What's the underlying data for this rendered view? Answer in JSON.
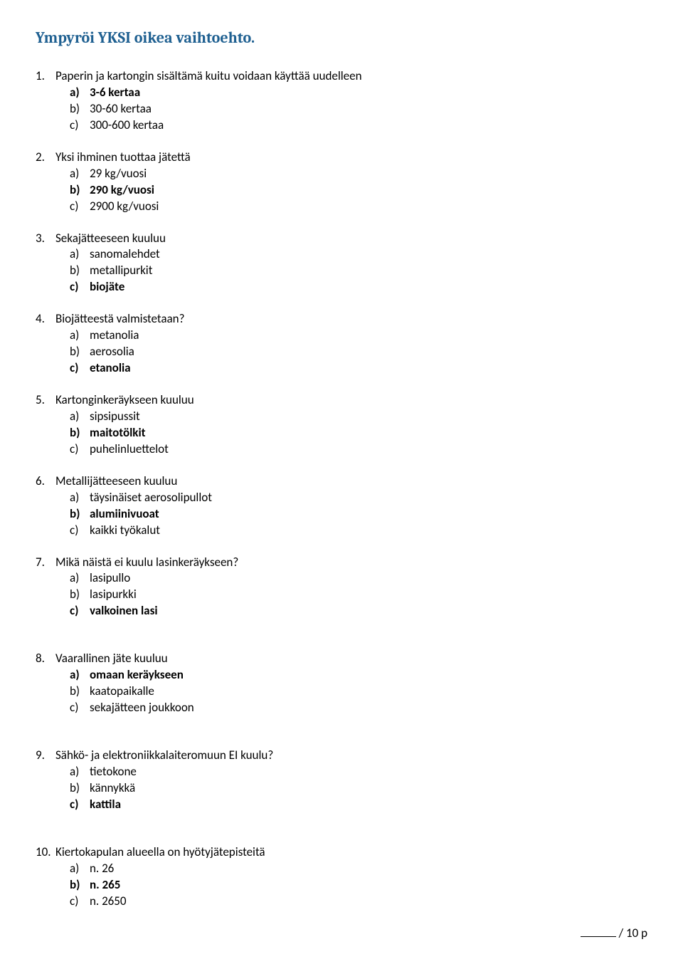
{
  "heading": "Ympyröi YKSI oikea vaihtoehto.",
  "questions": [
    {
      "num": "1.",
      "text": "Paperin ja kartongin sisältämä kuitu voidaan käyttää uudelleen",
      "options": [
        {
          "l": "a)",
          "t": "3-6 kertaa",
          "bold": true
        },
        {
          "l": "b)",
          "t": "30-60 kertaa",
          "bold": false
        },
        {
          "l": "c)",
          "t": "300-600 kertaa",
          "bold": false
        }
      ]
    },
    {
      "num": "2.",
      "text": "Yksi ihminen tuottaa jätettä",
      "options": [
        {
          "l": "a)",
          "t": "29 kg/vuosi",
          "bold": false
        },
        {
          "l": "b)",
          "t": "290 kg/vuosi",
          "bold": true
        },
        {
          "l": "c)",
          "t": "2900 kg/vuosi",
          "bold": false
        }
      ]
    },
    {
      "num": "3.",
      "text": "Sekajätteeseen kuuluu",
      "options": [
        {
          "l": "a)",
          "t": "sanomalehdet",
          "bold": false
        },
        {
          "l": "b)",
          "t": "metallipurkit",
          "bold": false
        },
        {
          "l": "c)",
          "t": "biojäte",
          "bold": true
        }
      ]
    },
    {
      "num": "4.",
      "text": "Biojätteestä valmistetaan?",
      "options": [
        {
          "l": "a)",
          "t": "metanolia",
          "bold": false
        },
        {
          "l": "b)",
          "t": "aerosolia",
          "bold": false
        },
        {
          "l": "c)",
          "t": "etanolia",
          "bold": true
        }
      ]
    },
    {
      "num": "5.",
      "text": "Kartonginkeräykseen kuuluu",
      "options": [
        {
          "l": "a)",
          "t": "sipsipussit",
          "bold": false
        },
        {
          "l": "b)",
          "t": "maitotölkit",
          "bold": true
        },
        {
          "l": "c)",
          "t": "puhelinluettelot",
          "bold": false
        }
      ]
    },
    {
      "num": "6.",
      "text": "Metallijätteeseen kuuluu",
      "options": [
        {
          "l": "a)",
          "t": "täysinäiset aerosolipullot",
          "bold": false
        },
        {
          "l": "b)",
          "t": "alumiinivuoat",
          "bold": true
        },
        {
          "l": "c)",
          "t": "kaikki työkalut",
          "bold": false
        }
      ]
    },
    {
      "num": "7.",
      "text": "Mikä näistä ei kuulu lasinkeräykseen?",
      "options": [
        {
          "l": "a)",
          "t": "lasipullo",
          "bold": false
        },
        {
          "l": "b)",
          "t": "lasipurkki",
          "bold": false
        },
        {
          "l": "c)",
          "t": "valkoinen lasi",
          "bold": true
        }
      ],
      "gap": true
    },
    {
      "num": "8.",
      "text": "Vaarallinen jäte kuuluu",
      "options": [
        {
          "l": "a)",
          "t": "omaan keräykseen",
          "bold": true
        },
        {
          "l": "b)",
          "t": "kaatopaikalle",
          "bold": false
        },
        {
          "l": "c)",
          "t": "sekajätteen joukkoon",
          "bold": false
        }
      ],
      "gap": true
    },
    {
      "num": "9.",
      "text": "Sähkö- ja elektroniikkalaiteromuun EI kuulu?",
      "options": [
        {
          "l": "a)",
          "t": "tietokone",
          "bold": false
        },
        {
          "l": "b)",
          "t": "kännykkä",
          "bold": false
        },
        {
          "l": "c)",
          "t": "kattila",
          "bold": true
        }
      ],
      "gap": true
    },
    {
      "num": "10.",
      "text": "Kiertokapulan alueella on hyötyjätepisteitä",
      "options": [
        {
          "l": "a)",
          "t": "n. 26",
          "bold": false
        },
        {
          "l": "b)",
          "t": "n. 265",
          "bold": true
        },
        {
          "l": "c)",
          "t": "n. 2650",
          "bold": false
        }
      ]
    }
  ],
  "score_suffix": " / 10 p"
}
